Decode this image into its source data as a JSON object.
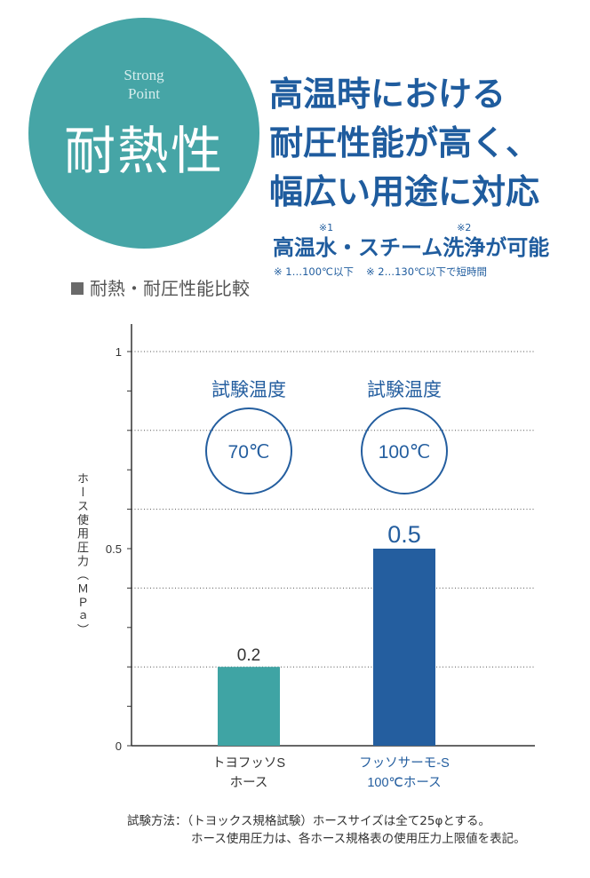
{
  "colors": {
    "badge": "#46a5a6",
    "blue": "#1f5c9e"
  },
  "badge": {
    "subtitle_lines": [
      "Strong",
      "Point"
    ],
    "title": "耐熱性"
  },
  "headline": {
    "lines": [
      "高温時における",
      "耐圧性能が高く、",
      "幅広い用途に対応"
    ]
  },
  "feature": {
    "segments": [
      {
        "text": "高温"
      },
      {
        "text": "水",
        "note": "※1"
      },
      {
        "text": "・スチーム"
      },
      {
        "text": "洗浄",
        "note": "※2"
      },
      {
        "text": "が可能"
      }
    ],
    "footnotes": [
      "※ 1…100℃以下",
      "※ 2…130℃以下で短時間"
    ]
  },
  "chart_data": {
    "type": "bar",
    "title": "耐熱・耐圧性能比較",
    "categories": [
      "トヨフッソS\nホース",
      "フッソサーモ-S\n100℃ホース"
    ],
    "values": [
      0.2,
      0.5
    ],
    "colors": [
      "#3fa4a4",
      "#245e9f"
    ],
    "label_colors": [
      "#333333",
      "#245e9f"
    ],
    "annotations": [
      {
        "label": "試験温度",
        "value": "70℃"
      },
      {
        "label": "試験温度",
        "value": "100℃"
      }
    ],
    "annotation_color": "#245e9f",
    "ylabel": "ホース使用圧力（ＭＰａ）",
    "ylim": [
      0,
      1
    ],
    "yticks": [
      0,
      0.5,
      1
    ],
    "grid": true,
    "grid_step": 0.2,
    "minor_tick_step": 0.1
  },
  "notes": [
    "試験方法：（トヨックス規格試験）ホースサイズは全て25φとする。",
    "ホース使用圧力は、各ホース規格表の使用圧力上限値を表記。"
  ]
}
